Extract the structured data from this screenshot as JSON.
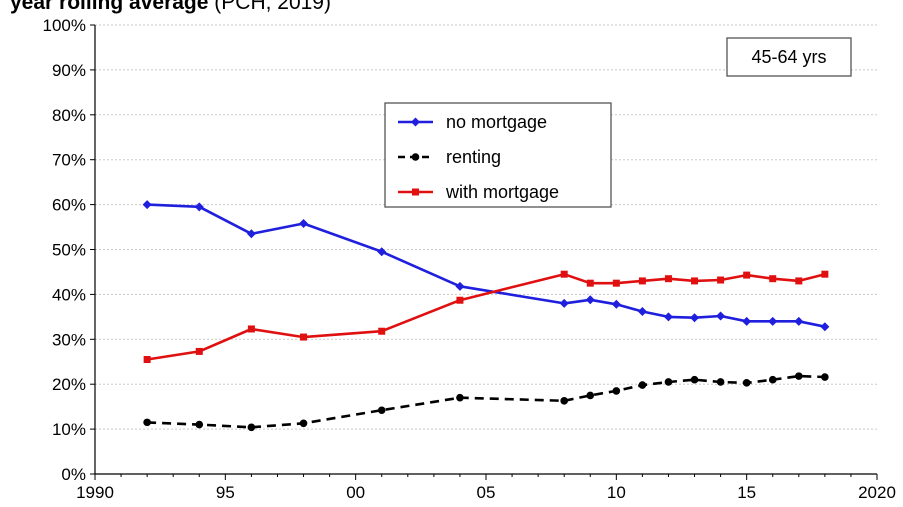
{
  "header": {
    "title_bold": "year rolling average",
    "title_rest": " (PCH, 2019)"
  },
  "chart_data": {
    "type": "line",
    "annotation": "45-64 yrs",
    "xlim": [
      1990,
      2020
    ],
    "ylim": [
      0,
      100
    ],
    "y_unit": "%",
    "x_ticks": [
      1990,
      1995,
      2000,
      2005,
      2010,
      2015,
      2020
    ],
    "x_tick_labels": [
      "1990",
      "95",
      "00",
      "05",
      "10",
      "15",
      "2020"
    ],
    "y_ticks": [
      0,
      10,
      20,
      30,
      40,
      50,
      60,
      70,
      80,
      90,
      100
    ],
    "y_tick_labels": [
      "0%",
      "10%",
      "20%",
      "30%",
      "40%",
      "50%",
      "60%",
      "70%",
      "80%",
      "90%",
      "100%"
    ],
    "grid": true,
    "legend_position": "top-center",
    "series": [
      {
        "name": "no mortgage",
        "color": "#1f1fdd",
        "style": "solid",
        "marker": "diamond",
        "x": [
          1992,
          1994,
          1996,
          1998,
          2001,
          2004,
          2008,
          2009,
          2010,
          2011,
          2012,
          2013,
          2014,
          2015,
          2016,
          2017,
          2018
        ],
        "y": [
          60,
          59.5,
          53.5,
          55.8,
          49.5,
          41.8,
          38,
          38.8,
          37.8,
          36.2,
          35,
          34.8,
          35.2,
          34,
          34,
          34,
          32.8
        ]
      },
      {
        "name": "renting",
        "color": "#000000",
        "style": "dashed",
        "marker": "circle",
        "x": [
          1992,
          1994,
          1996,
          1998,
          2001,
          2004,
          2008,
          2009,
          2010,
          2011,
          2012,
          2013,
          2014,
          2015,
          2016,
          2017,
          2018
        ],
        "y": [
          11.5,
          11,
          10.4,
          11.3,
          14.2,
          17,
          16.3,
          17.5,
          18.5,
          19.8,
          20.5,
          21,
          20.5,
          20.3,
          21,
          21.8,
          21.6
        ]
      },
      {
        "name": "with mortgage",
        "color": "#e01010",
        "style": "solid",
        "marker": "square",
        "x": [
          1992,
          1994,
          1996,
          1998,
          2001,
          2004,
          2008,
          2009,
          2010,
          2011,
          2012,
          2013,
          2014,
          2015,
          2016,
          2017,
          2018
        ],
        "y": [
          25.5,
          27.3,
          32.3,
          30.5,
          31.8,
          38.7,
          44.5,
          42.5,
          42.5,
          43,
          43.5,
          43,
          43.2,
          44.3,
          43.5,
          43,
          44.5
        ]
      }
    ]
  }
}
